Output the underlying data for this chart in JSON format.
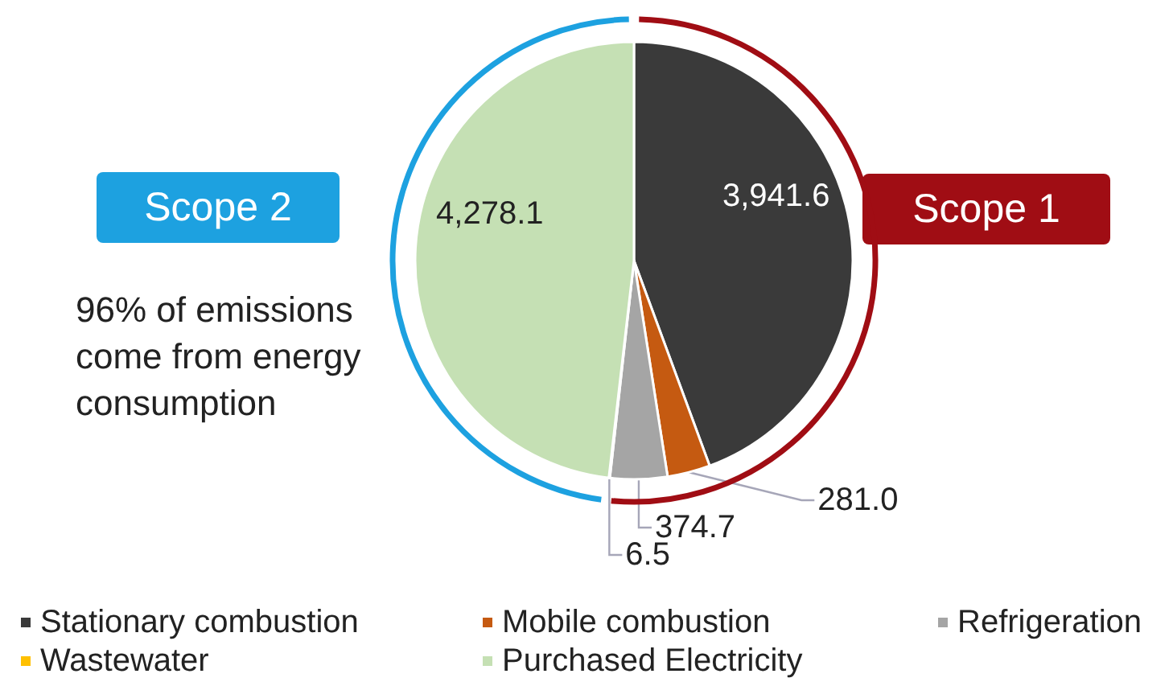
{
  "chart_data": {
    "type": "pie",
    "categories": [
      "Stationary combustion",
      "Mobile combustion",
      "Refrigeration",
      "Wastewater",
      "Purchased Electricity"
    ],
    "values": [
      3941.6,
      281.0,
      374.7,
      6.5,
      4278.1
    ],
    "colors": [
      "#3a3a3a",
      "#c55a11",
      "#a5a5a5",
      "#ffc000",
      "#c5e0b4"
    ],
    "value_labels": [
      "3,941.6",
      "281.0",
      "374.7",
      "6.5",
      "4,278.1"
    ],
    "legend": "bottom",
    "annotations": [
      "Scope 2",
      "Scope 1",
      "96% of emissions come from energy consumption"
    ]
  }
}
